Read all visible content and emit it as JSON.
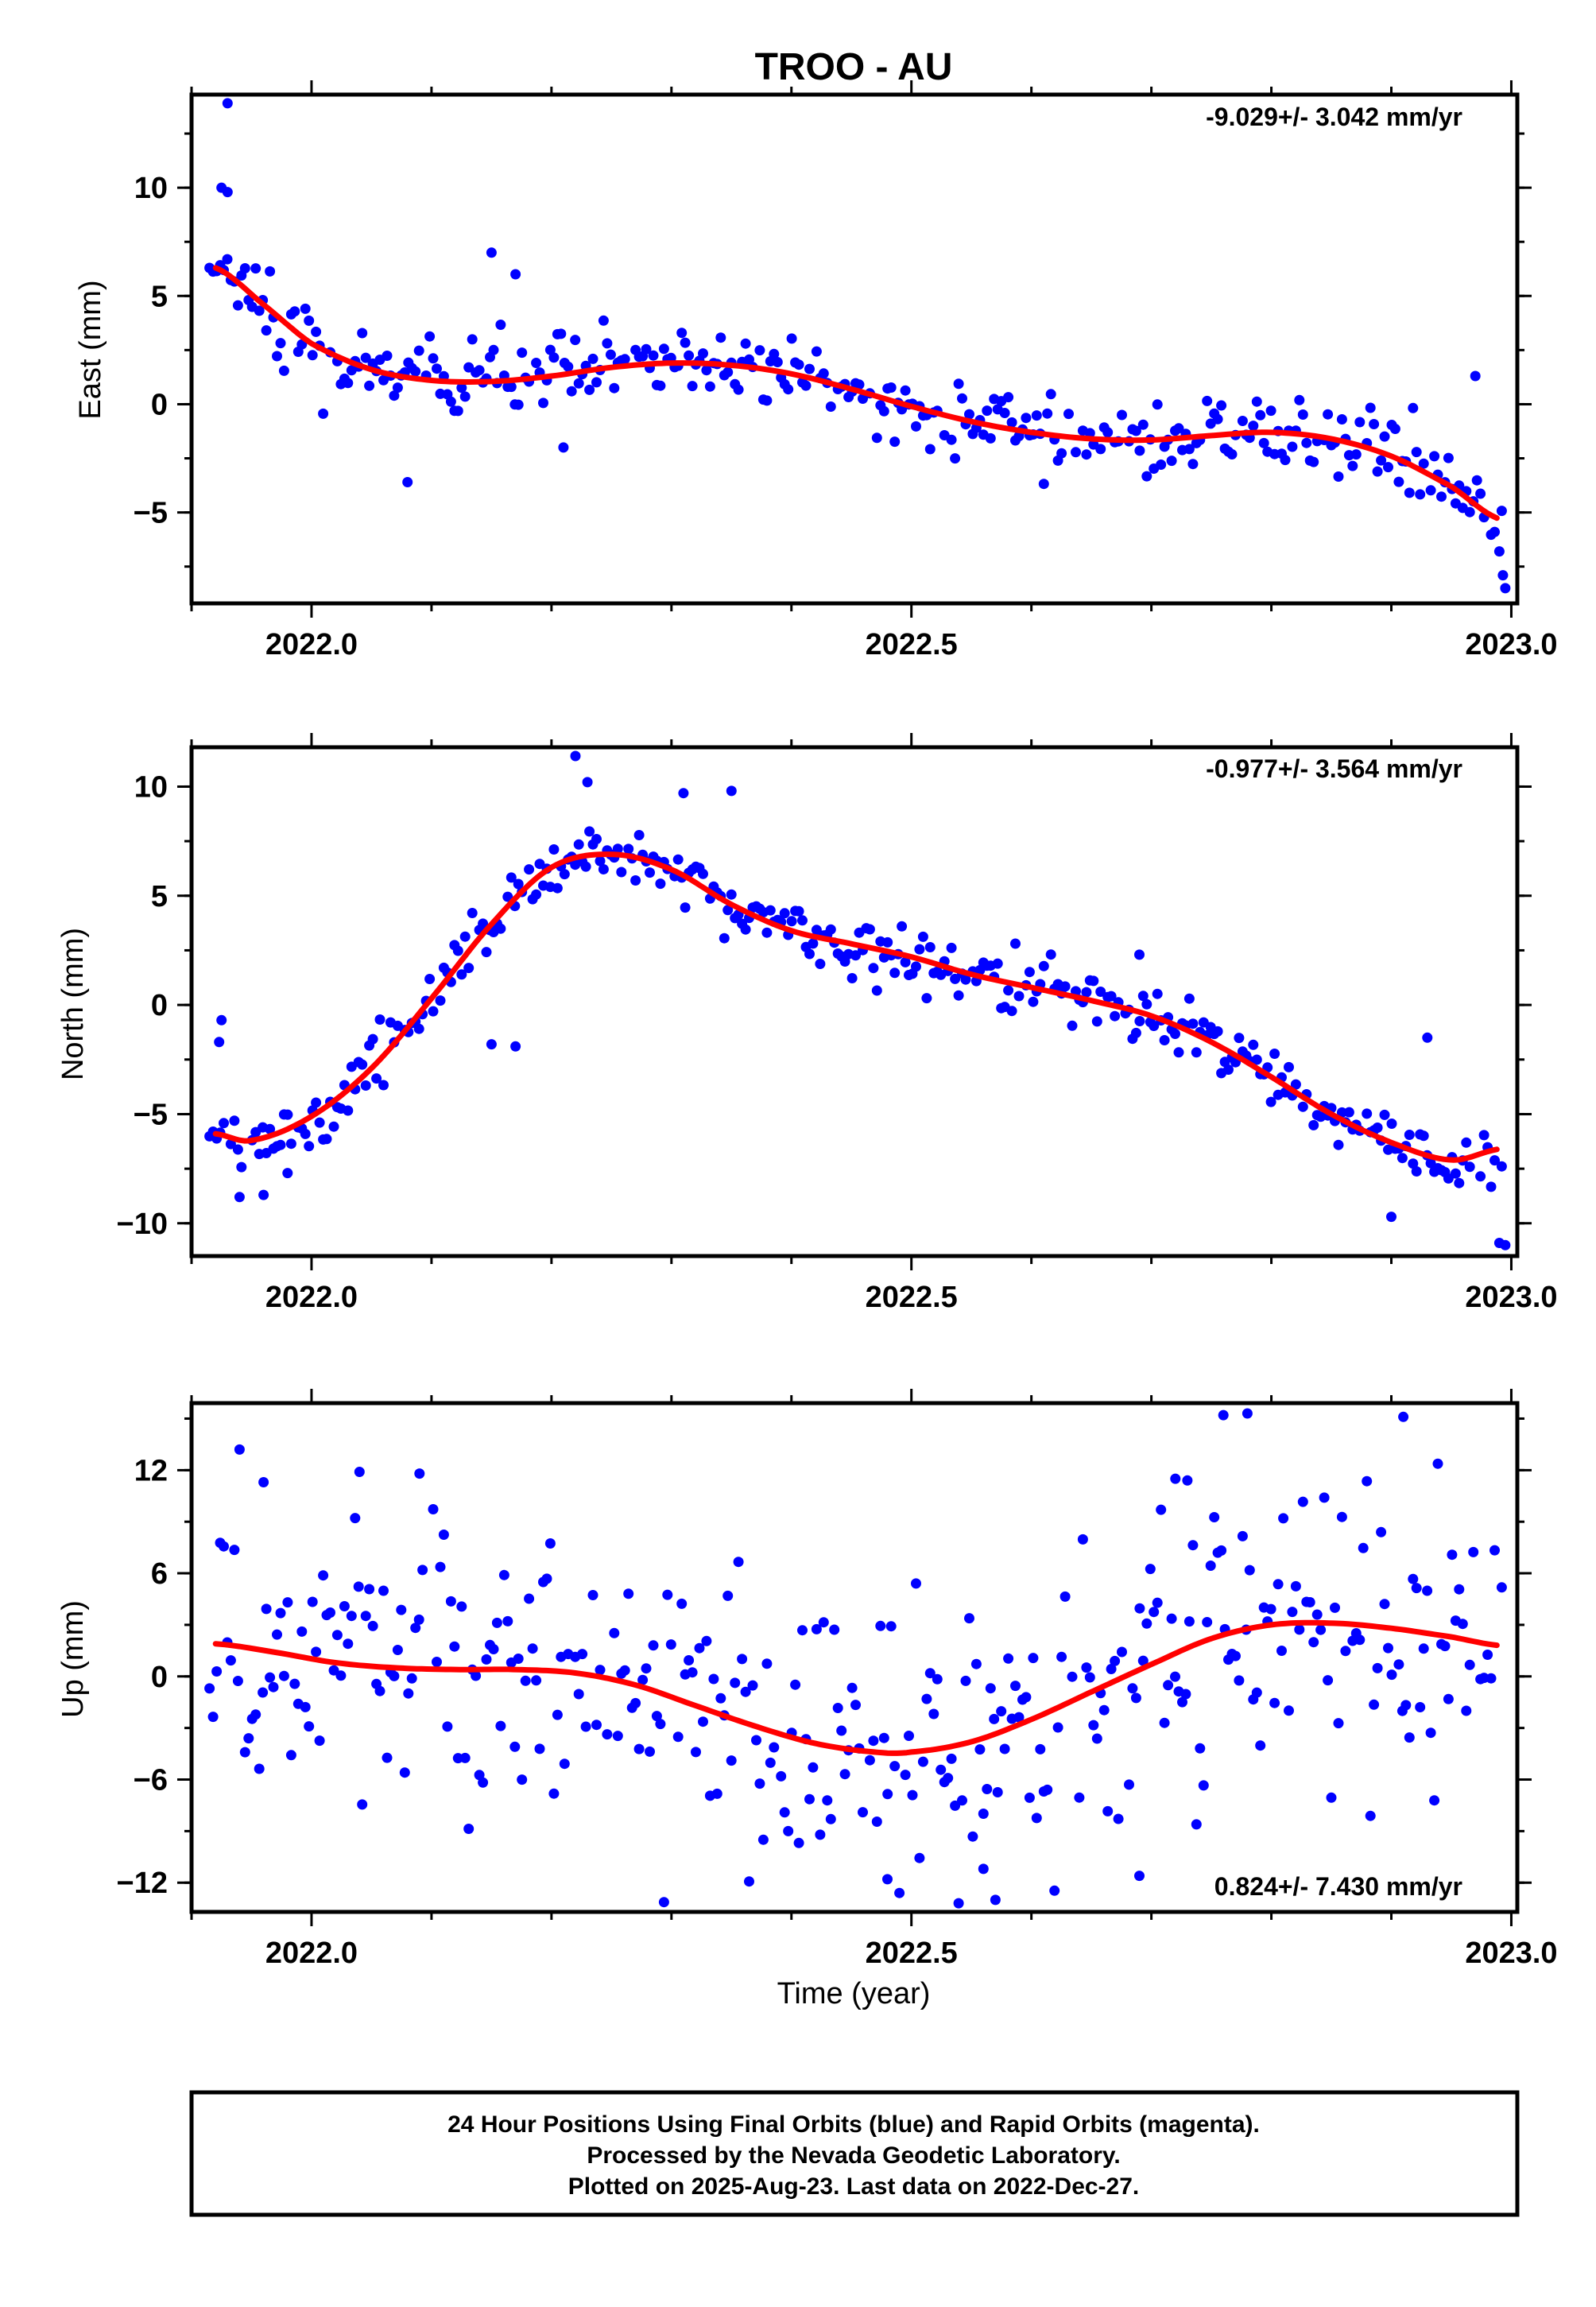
{
  "title": "TROO - AU",
  "xlabel": "Time (year)",
  "footer": [
    "24 Hour Positions Using Final Orbits (blue) and Rapid Orbits (magenta).",
    "Processed by the Nevada Geodetic Laboratory.",
    "Plotted on 2025-Aug-23. Last data on 2022-Dec-27."
  ],
  "colors": {
    "final_orbits": "#0000ff",
    "fit": "#ff0000",
    "frame": "#000000"
  },
  "chart_data": [
    {
      "type": "scatter",
      "component": "east",
      "ylabel": "East (mm)",
      "rate": "-9.029+/- 3.042 mm/yr",
      "rate_position": "top-right",
      "xlim": [
        2021.9,
        2023.005
      ],
      "ylim": [
        -9.2,
        14.3
      ],
      "xticks": [
        2022.0,
        2022.5,
        2023.0
      ],
      "xtick_labels": [
        "2022.0",
        "2022.5",
        "2023.0"
      ],
      "yticks": [
        -5,
        0,
        5,
        10
      ],
      "ytick_labels": [
        "−5",
        "0",
        "5",
        "10"
      ],
      "fit_knots": {
        "x": [
          2021.92,
          2021.96,
          2022.0,
          2022.05,
          2022.1,
          2022.15,
          2022.2,
          2022.25,
          2022.3,
          2022.35,
          2022.4,
          2022.45,
          2022.5,
          2022.55,
          2022.6,
          2022.65,
          2022.7,
          2022.75,
          2022.8,
          2022.85,
          2022.9,
          2022.95,
          2022.99
        ],
        "y": [
          6.3,
          4.6,
          2.8,
          1.6,
          1.1,
          1.05,
          1.3,
          1.7,
          1.9,
          1.8,
          1.4,
          0.7,
          -0.1,
          -0.8,
          -1.3,
          -1.6,
          -1.65,
          -1.45,
          -1.3,
          -1.6,
          -2.4,
          -3.8,
          -5.3
        ]
      },
      "scatter_sd": 0.9,
      "extra_points": [
        [
          2021.93,
          13.9
        ],
        [
          2021.925,
          10.0
        ],
        [
          2021.93,
          9.8
        ],
        [
          2022.15,
          7.0
        ],
        [
          2022.17,
          6.0
        ],
        [
          2022.97,
          1.3
        ],
        [
          2022.995,
          -8.5
        ],
        [
          2022.993,
          -7.9
        ],
        [
          2022.99,
          -6.8
        ],
        [
          2022.08,
          -3.6
        ],
        [
          2022.21,
          -2.0
        ]
      ]
    },
    {
      "type": "scatter",
      "component": "north",
      "ylabel": "North (mm)",
      "rate": "-0.977+/- 3.564 mm/yr",
      "rate_position": "top-right",
      "xlim": [
        2021.9,
        2023.005
      ],
      "ylim": [
        -11.5,
        11.8
      ],
      "xticks": [
        2022.0,
        2022.5,
        2023.0
      ],
      "xtick_labels": [
        "2022.0",
        "2022.5",
        "2023.0"
      ],
      "yticks": [
        -10,
        -5,
        0,
        5,
        10
      ],
      "ytick_labels": [
        "−10",
        "−5",
        "0",
        "5",
        "10"
      ],
      "fit_knots": {
        "x": [
          2021.92,
          2021.95,
          2022.0,
          2022.05,
          2022.1,
          2022.15,
          2022.2,
          2022.25,
          2022.3,
          2022.35,
          2022.4,
          2022.45,
          2022.5,
          2022.55,
          2022.6,
          2022.65,
          2022.7,
          2022.75,
          2022.8,
          2022.85,
          2022.9,
          2022.95,
          2022.99
        ],
        "y": [
          -5.9,
          -6.2,
          -5.1,
          -2.9,
          0.3,
          3.7,
          6.3,
          6.9,
          6.2,
          4.6,
          3.4,
          2.8,
          2.2,
          1.4,
          0.8,
          0.2,
          -0.5,
          -1.7,
          -3.3,
          -5.0,
          -6.3,
          -7.1,
          -6.6
        ]
      },
      "scatter_sd": 0.75,
      "extra_points": [
        [
          2021.925,
          -0.7
        ],
        [
          2021.923,
          -1.7
        ],
        [
          2022.22,
          11.4
        ],
        [
          2022.23,
          10.2
        ],
        [
          2022.35,
          9.8
        ],
        [
          2022.31,
          9.7
        ],
        [
          2022.15,
          -1.8
        ],
        [
          2022.17,
          -1.9
        ],
        [
          2022.69,
          2.3
        ],
        [
          2022.93,
          -1.5
        ],
        [
          2022.9,
          -9.7
        ],
        [
          2022.995,
          -11.0
        ],
        [
          2022.99,
          -10.9
        ],
        [
          2021.94,
          -8.8
        ],
        [
          2021.96,
          -8.7
        ],
        [
          2021.98,
          -7.7
        ]
      ]
    },
    {
      "type": "scatter",
      "component": "up",
      "ylabel": "Up (mm)",
      "rate": "0.824+/- 7.430 mm/yr",
      "rate_position": "bottom-right",
      "xlim": [
        2021.9,
        2023.005
      ],
      "ylim": [
        -13.7,
        15.9
      ],
      "xticks": [
        2022.0,
        2022.5,
        2023.0
      ],
      "xtick_labels": [
        "2022.0",
        "2022.5",
        "2023.0"
      ],
      "yticks": [
        -12,
        -6,
        0,
        6,
        12
      ],
      "ytick_labels": [
        "−12",
        "−6",
        "0",
        "6",
        "12"
      ],
      "fit_knots": {
        "x": [
          2021.92,
          2021.97,
          2022.02,
          2022.07,
          2022.12,
          2022.17,
          2022.22,
          2022.27,
          2022.32,
          2022.37,
          2022.42,
          2022.47,
          2022.5,
          2022.55,
          2022.6,
          2022.65,
          2022.7,
          2022.75,
          2022.8,
          2022.85,
          2022.9,
          2022.95,
          2022.99
        ],
        "y": [
          1.9,
          1.4,
          0.8,
          0.5,
          0.4,
          0.4,
          0.2,
          -0.5,
          -1.7,
          -2.9,
          -3.9,
          -4.4,
          -4.4,
          -3.8,
          -2.5,
          -0.9,
          0.7,
          2.2,
          3.0,
          3.1,
          2.8,
          2.3,
          1.8
        ]
      },
      "scatter_sd": 4.2,
      "extra_points": [
        [
          2021.94,
          13.2
        ],
        [
          2021.96,
          11.3
        ],
        [
          2022.04,
          11.9
        ],
        [
          2022.09,
          11.8
        ],
        [
          2022.76,
          15.2
        ],
        [
          2022.78,
          15.3
        ],
        [
          2022.91,
          15.1
        ],
        [
          2022.72,
          11.5
        ],
        [
          2022.73,
          11.4
        ],
        [
          2022.81,
          9.2
        ],
        [
          2022.57,
          -13.0
        ],
        [
          2022.49,
          -12.6
        ],
        [
          2022.48,
          -11.8
        ],
        [
          2022.69,
          -11.6
        ],
        [
          2022.56,
          -11.2
        ]
      ]
    }
  ]
}
